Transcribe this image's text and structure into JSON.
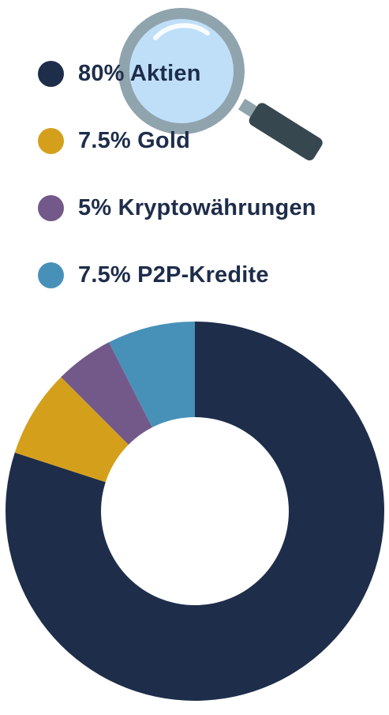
{
  "chart_data": {
    "type": "pie",
    "variant": "donut",
    "title": "",
    "legend_position": "top-left",
    "start_angle_deg": 0,
    "direction": "clockwise",
    "slices": [
      {
        "label": "Aktien",
        "value": 80,
        "color": "#1e2d4a",
        "legend_text": "80% Aktien"
      },
      {
        "label": "Gold",
        "value": 7.5,
        "color": "#d4a01c",
        "legend_text": "7.5% Gold"
      },
      {
        "label": "Kryptowährungen",
        "value": 5,
        "color": "#735989",
        "legend_text": "5% Kryptowährungen"
      },
      {
        "label": "P2P-Kredite",
        "value": 7.5,
        "color": "#4791b9",
        "legend_text": "7.5% P2P-Kredite"
      }
    ]
  },
  "decoration": {
    "magnifier_icon": "magnifying-glass-icon",
    "glass_color": "#bfdff9",
    "rim_color": "#90a4ae",
    "handle_color": "#37474f"
  }
}
